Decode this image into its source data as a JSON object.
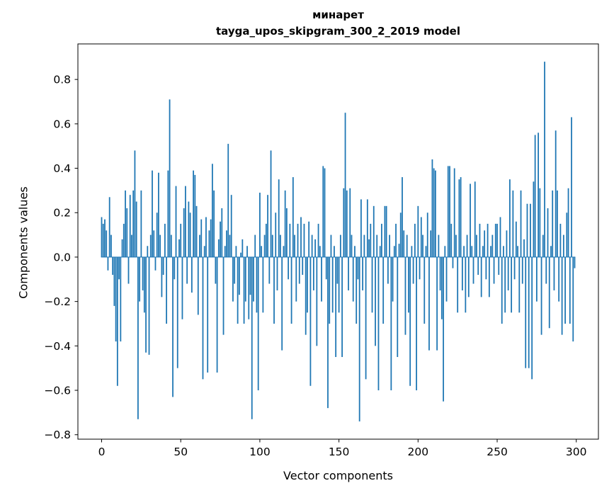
{
  "chart_data": {
    "type": "bar",
    "title": "минарет",
    "subtitle": "tayga_upos_skipgram_300_2_2019 model",
    "xlabel": "Vector components",
    "ylabel": "Components values",
    "bar_color": "#1f77b4",
    "xlim": [
      -15,
      314
    ],
    "ylim": [
      -0.82,
      0.96
    ],
    "grid": false,
    "legend": "none",
    "x_ticks": [
      0,
      50,
      100,
      150,
      200,
      250,
      300
    ],
    "x_tick_labels": [
      "0",
      "50",
      "100",
      "150",
      "200",
      "250",
      "300"
    ],
    "y_ticks": [
      -0.8,
      -0.6,
      -0.4,
      -0.2,
      0.0,
      0.2,
      0.4,
      0.6,
      0.8
    ],
    "y_tick_labels": [
      "−0.8",
      "−0.6",
      "−0.4",
      "−0.2",
      "0.0",
      "0.2",
      "0.4",
      "0.6",
      "0.8"
    ],
    "values": [
      0.18,
      0.15,
      0.17,
      0.12,
      -0.06,
      0.27,
      0.1,
      -0.08,
      -0.22,
      -0.38,
      -0.58,
      -0.1,
      -0.38,
      0.08,
      0.15,
      0.3,
      0.22,
      -0.12,
      0.28,
      0.1,
      0.3,
      0.48,
      0.25,
      -0.73,
      -0.2,
      0.3,
      -0.15,
      -0.25,
      -0.43,
      0.05,
      -0.44,
      0.1,
      0.39,
      0.12,
      -0.06,
      0.2,
      0.38,
      0.1,
      -0.18,
      -0.08,
      0.15,
      -0.3,
      0.39,
      0.71,
      0.1,
      -0.63,
      -0.1,
      0.32,
      -0.5,
      0.08,
      0.15,
      -0.28,
      0.22,
      0.32,
      -0.12,
      0.25,
      0.2,
      -0.16,
      0.39,
      0.37,
      0.23,
      -0.26,
      0.1,
      0.17,
      -0.55,
      0.05,
      0.18,
      -0.52,
      0.12,
      0.17,
      0.42,
      0.3,
      -0.12,
      -0.52,
      0.08,
      0.16,
      0.22,
      -0.35,
      0.05,
      0.12,
      0.51,
      0.1,
      0.28,
      -0.2,
      -0.12,
      0.05,
      -0.3,
      -0.17,
      0.02,
      0.08,
      -0.3,
      -0.2,
      0.05,
      -0.28,
      -0.17,
      -0.73,
      -0.2,
      0.1,
      -0.25,
      -0.6,
      0.29,
      0.05,
      -0.25,
      0.1,
      0.15,
      0.28,
      -0.12,
      0.48,
      0.1,
      -0.3,
      0.2,
      -0.15,
      0.35,
      0.1,
      -0.42,
      0.05,
      0.3,
      0.22,
      -0.1,
      0.15,
      -0.3,
      0.36,
      0.1,
      -0.2,
      0.15,
      -0.12,
      0.18,
      -0.08,
      0.15,
      -0.35,
      -0.25,
      0.16,
      -0.58,
      0.1,
      -0.15,
      0.08,
      -0.4,
      0.15,
      0.05,
      -0.2,
      0.41,
      0.4,
      -0.1,
      -0.68,
      -0.3,
      0.1,
      -0.25,
      0.05,
      -0.45,
      -0.12,
      -0.25,
      0.1,
      -0.45,
      0.31,
      0.65,
      0.3,
      -0.15,
      0.31,
      0.1,
      -0.2,
      0.05,
      -0.3,
      -0.1,
      -0.74,
      0.26,
      -0.15,
      0.1,
      -0.55,
      0.26,
      0.08,
      0.15,
      -0.25,
      0.23,
      -0.4,
      0.1,
      -0.6,
      0.05,
      0.15,
      -0.3,
      0.23,
      0.23,
      -0.12,
      0.1,
      -0.6,
      -0.2,
      0.05,
      0.15,
      -0.45,
      0.06,
      0.2,
      0.36,
      0.12,
      -0.35,
      0.1,
      -0.25,
      -0.58,
      0.05,
      -0.12,
      0.15,
      -0.6,
      0.23,
      -0.1,
      0.18,
      0.1,
      -0.3,
      0.05,
      0.2,
      -0.42,
      0.12,
      0.44,
      0.4,
      0.39,
      -0.42,
      0.1,
      -0.15,
      -0.28,
      -0.65,
      0.05,
      -0.2,
      0.41,
      0.41,
      0.15,
      -0.05,
      0.4,
      0.1,
      -0.25,
      0.35,
      0.36,
      -0.15,
      0.05,
      -0.25,
      0.1,
      -0.18,
      0.33,
      0.05,
      -0.12,
      0.34,
      0.1,
      -0.08,
      0.15,
      -0.18,
      0.05,
      0.12,
      -0.1,
      0.15,
      -0.18,
      0.05,
      0.1,
      -0.12,
      0.15,
      0.15,
      -0.08,
      0.18,
      -0.3,
      0.05,
      -0.25,
      0.12,
      -0.15,
      0.35,
      -0.25,
      0.3,
      -0.1,
      0.16,
      0.05,
      -0.25,
      0.3,
      -0.12,
      0.08,
      -0.5,
      0.24,
      -0.5,
      0.24,
      -0.55,
      0.34,
      0.55,
      -0.2,
      0.56,
      0.31,
      -0.35,
      0.1,
      0.88,
      -0.12,
      0.22,
      -0.32,
      0.05,
      0.3,
      -0.15,
      0.57,
      0.3,
      -0.2,
      0.15,
      -0.35,
      0.1,
      -0.3,
      0.2,
      0.31,
      -0.3,
      0.63,
      -0.38,
      -0.05
    ]
  }
}
